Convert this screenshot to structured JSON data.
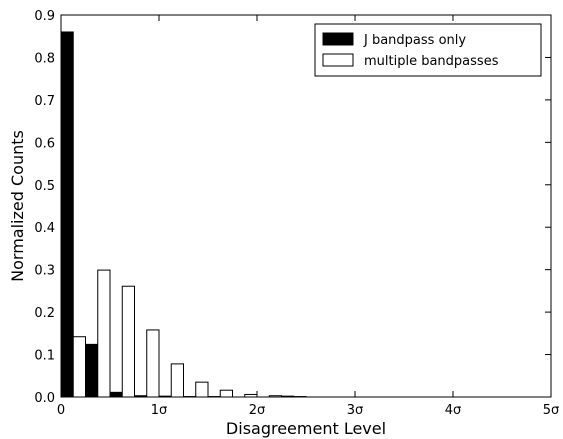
{
  "chart_data": {
    "type": "bar",
    "xlabel": "Disagreement Level",
    "ylabel": "Normalized Counts",
    "xlim": [
      0,
      5
    ],
    "ylim": [
      0,
      0.9
    ],
    "bin_width": 0.25,
    "x_ticks": [
      {
        "value": 0,
        "label": "0"
      },
      {
        "value": 1,
        "label": "1σ"
      },
      {
        "value": 2,
        "label": "2σ"
      },
      {
        "value": 3,
        "label": "3σ"
      },
      {
        "value": 4,
        "label": "4σ"
      },
      {
        "value": 5,
        "label": "5σ"
      }
    ],
    "y_ticks": [
      {
        "value": 0.0,
        "label": "0.0"
      },
      {
        "value": 0.1,
        "label": "0.1"
      },
      {
        "value": 0.2,
        "label": "0.2"
      },
      {
        "value": 0.3,
        "label": "0.3"
      },
      {
        "value": 0.4,
        "label": "0.4"
      },
      {
        "value": 0.5,
        "label": "0.5"
      },
      {
        "value": 0.6,
        "label": "0.6"
      },
      {
        "value": 0.7,
        "label": "0.7"
      },
      {
        "value": 0.8,
        "label": "0.8"
      },
      {
        "value": 0.9,
        "label": "0.9"
      }
    ],
    "grid": false,
    "legend_position": "top-right",
    "series": [
      {
        "name": "J bandpass only",
        "color": "#000000",
        "fill": "#000000",
        "bin_starts": [
          0,
          0.25,
          0.5,
          0.75,
          1.0,
          1.25,
          1.5,
          1.75,
          2.0,
          2.25
        ],
        "values": [
          0.86,
          0.124,
          0.011,
          0.003,
          0.002,
          0.001,
          0.001,
          0.0,
          0.0,
          0.002
        ]
      },
      {
        "name": "multiple bandpasses",
        "color": "#000000",
        "fill": "#ffffff",
        "bin_starts": [
          0,
          0.25,
          0.5,
          0.75,
          1.0,
          1.25,
          1.5,
          1.75,
          2.0,
          2.25
        ],
        "values": [
          0.142,
          0.299,
          0.261,
          0.158,
          0.078,
          0.035,
          0.016,
          0.006,
          0.003,
          0.001
        ]
      }
    ]
  }
}
